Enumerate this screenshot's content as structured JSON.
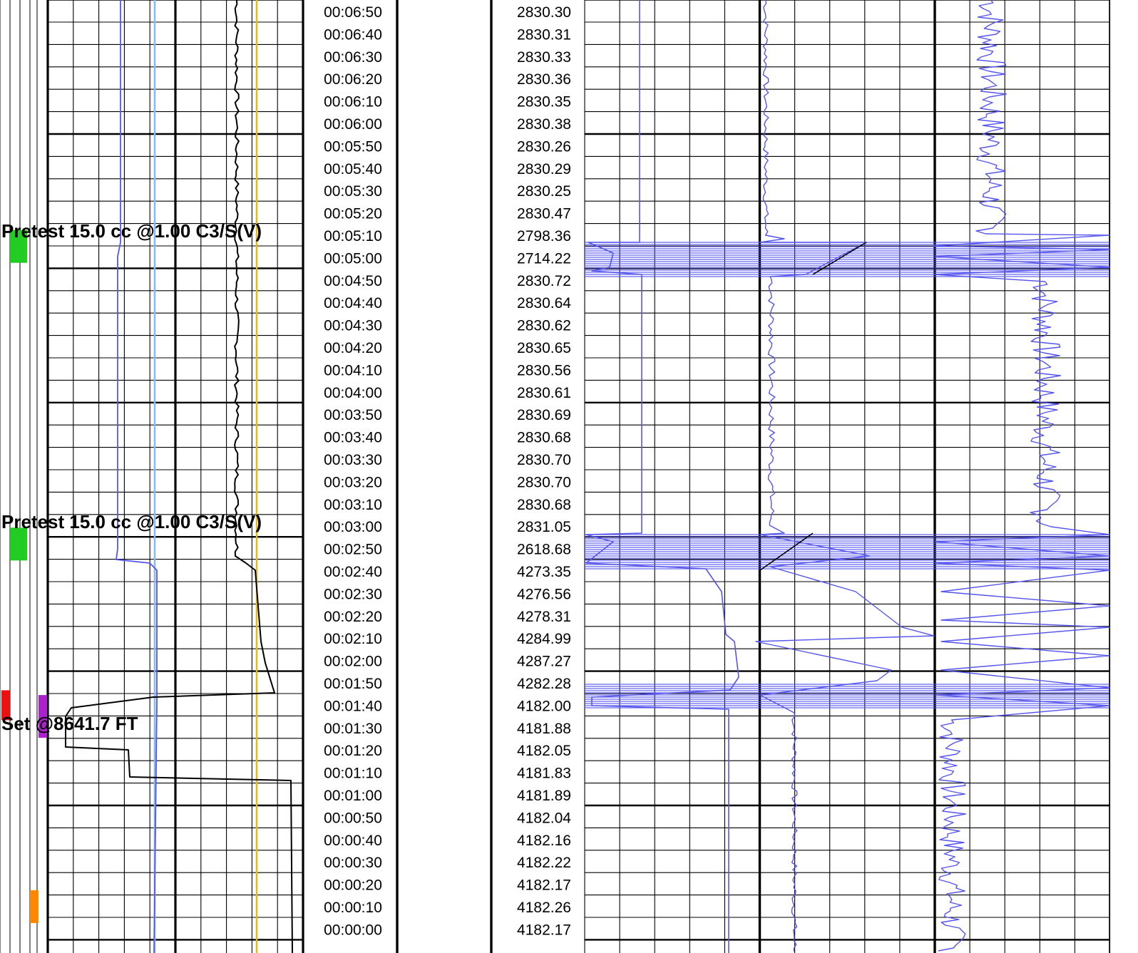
{
  "chart_data": {
    "type": "line",
    "title": "",
    "time_labels": [
      "00:06:50",
      "00:06:40",
      "00:06:30",
      "00:06:20",
      "00:06:10",
      "00:06:00",
      "00:05:50",
      "00:05:40",
      "00:05:30",
      "00:05:20",
      "00:05:10",
      "00:05:00",
      "00:04:50",
      "00:04:40",
      "00:04:30",
      "00:04:20",
      "00:04:10",
      "00:04:00",
      "00:03:50",
      "00:03:40",
      "00:03:30",
      "00:03:20",
      "00:03:10",
      "00:03:00",
      "00:02:50",
      "00:02:40",
      "00:02:30",
      "00:02:20",
      "00:02:10",
      "00:02:00",
      "00:01:50",
      "00:01:40",
      "00:01:30",
      "00:01:20",
      "00:01:10",
      "00:01:00",
      "00:00:50",
      "00:00:40",
      "00:00:30",
      "00:00:20",
      "00:00:10",
      "00:00:00"
    ],
    "pressure_labels": [
      "2830.30",
      "2830.31",
      "2830.33",
      "2830.36",
      "2830.35",
      "2830.38",
      "2830.26",
      "2830.29",
      "2830.25",
      "2830.47",
      "2798.36",
      "2714.22",
      "2830.72",
      "2830.64",
      "2830.62",
      "2830.65",
      "2830.56",
      "2830.61",
      "2830.69",
      "2830.68",
      "2830.70",
      "2830.70",
      "2830.68",
      "2831.05",
      "2618.68",
      "4273.35",
      "4276.56",
      "4278.31",
      "4284.99",
      "4287.27",
      "4282.28",
      "4182.00",
      "4181.88",
      "4182.05",
      "4181.83",
      "4181.89",
      "4182.04",
      "4182.16",
      "4182.22",
      "4182.17",
      "4182.26",
      "4182.17"
    ],
    "annotations": [
      {
        "text": "Pretest 15.0 cc @1.00 C3/S(V)",
        "time": "00:05:10"
      },
      {
        "text": "Pretest 15.0 cc @1.00 C3/S(V)",
        "time": "00:03:00"
      },
      {
        "text": "Set @8641.7 FT",
        "time": "00:01:30"
      }
    ],
    "markers": [
      {
        "color": "#22cc22",
        "time": "00:05:05"
      },
      {
        "color": "#22cc22",
        "time": "00:02:52"
      },
      {
        "color": "#ee1111",
        "time": "00:01:40"
      },
      {
        "color": "#aa22cc",
        "time": "00:01:35"
      },
      {
        "color": "#ff8800",
        "time": "00:00:10"
      }
    ],
    "series_colors": {
      "pressure_trace": "#5555ee",
      "gauge_trace": "#88bbee",
      "reference_trace": "#f0b800",
      "motor_trace": "#000000"
    },
    "grid": true
  }
}
